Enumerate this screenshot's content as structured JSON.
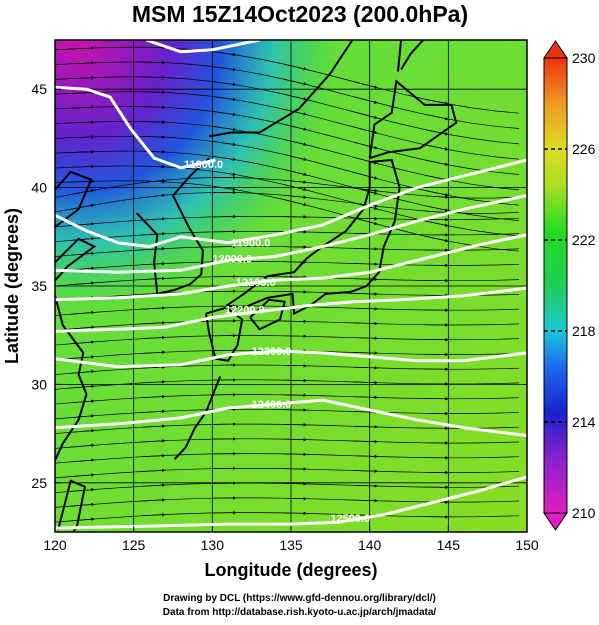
{
  "chart_data": {
    "type": "heatmap",
    "title": "MSM 15Z14Oct2023 (200.0hPa)",
    "xlabel": "Longitude (degrees)",
    "ylabel": "Latitude  (degrees)",
    "xlim": [
      120,
      150
    ],
    "ylim": [
      22.5,
      47.5
    ],
    "x_ticks": [
      "120",
      "125",
      "130",
      "135",
      "140",
      "145",
      "150"
    ],
    "y_ticks": [
      "25",
      "30",
      "35",
      "40",
      "45"
    ],
    "colorbar": {
      "range": [
        210,
        230
      ],
      "ticks": [
        "210",
        "214",
        "218",
        "222",
        "226",
        "230"
      ]
    },
    "contours": [
      {
        "label": "11800.0",
        "lon": 128.2,
        "lat": 41.0
      },
      {
        "label": "11900.0",
        "lon": 131.2,
        "lat": 37.0
      },
      {
        "label": "12000.0",
        "lon": 130.0,
        "lat": 36.2
      },
      {
        "label": "12100.0",
        "lon": 131.5,
        "lat": 35.0
      },
      {
        "label": "12200.0",
        "lon": 130.8,
        "lat": 33.6
      },
      {
        "label": "12300.0",
        "lon": 132.5,
        "lat": 31.5
      },
      {
        "label": "12400.0",
        "lon": 132.5,
        "lat": 28.8
      },
      {
        "label": "12500.0",
        "lon": 137.5,
        "lat": 23.0
      }
    ],
    "colors": {
      "cold": "#cc11cc",
      "cool": "#1133dd",
      "mid": "#22dd44",
      "warm": "#ddcc22",
      "hot": "#ee3311"
    }
  },
  "footer": {
    "line1": "Drawing by DCL (https://www.gfd-dennou.org/library/dcl/)",
    "line2": "Data from http://database.rish.kyoto-u.ac.jp/arch/jmadata/"
  }
}
